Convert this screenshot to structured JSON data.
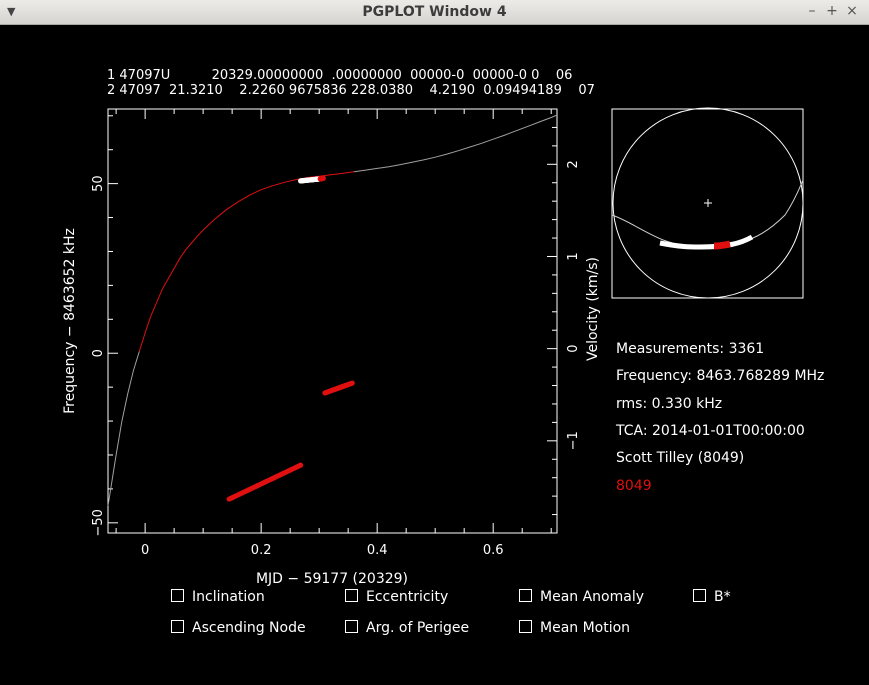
{
  "window": {
    "title": "PGPLOT Window 4",
    "menu_icon": "chevron-down-icon",
    "buttons": {
      "minimize": "–",
      "maximize": "+",
      "close": "×"
    }
  },
  "tle": {
    "line1": "1 47097U          20329.00000000  .00000000  00000-0  00000-0 0    06",
    "line2": "2 47097  21.3210    2.2260 9675836 228.0380    4.2190  0.09494189    07"
  },
  "chart_data": [
    {
      "type": "scatter",
      "xlabel": "MJD − 59177 (20329)",
      "ylabel": "Frequency − 8463652 kHz",
      "y2label": "Velocity (km/s)",
      "xlim": [
        -0.064,
        0.71
      ],
      "ylim": [
        -53,
        72
      ],
      "y2lim": [
        -2.0,
        2.6
      ],
      "x_ticks": [
        0,
        0.2,
        0.4,
        0.6
      ],
      "x_tick_labels": [
        "0",
        "0.2",
        "0.4",
        "0.6"
      ],
      "y_ticks": [
        -50,
        0,
        50
      ],
      "y_tick_labels": [
        "−50",
        "0",
        "50"
      ],
      "y2_ticks": [
        -1,
        0,
        1,
        2
      ],
      "y2_tick_labels": [
        "−1",
        "0",
        "1",
        "2"
      ],
      "model_curve": {
        "x": [
          -0.064,
          -0.05,
          -0.04,
          -0.03,
          -0.02,
          -0.01,
          0,
          0.01,
          0.02,
          0.03,
          0.04,
          0.05,
          0.06,
          0.07,
          0.08,
          0.09,
          0.1,
          0.12,
          0.14,
          0.16,
          0.18,
          0.2,
          0.22,
          0.24,
          0.26,
          0.28,
          0.3,
          0.32,
          0.34,
          0.36,
          0.38,
          0.4,
          0.42,
          0.44,
          0.46,
          0.48,
          0.5,
          0.52,
          0.54,
          0.56,
          0.58,
          0.6,
          0.62,
          0.64,
          0.66,
          0.68,
          0.7,
          0.71
        ],
        "y": [
          -45,
          -30,
          -20,
          -12,
          -5,
          0.5,
          6,
          11,
          15,
          19,
          22,
          25,
          28,
          30.5,
          32.5,
          34.5,
          36.3,
          39.5,
          42.3,
          44.6,
          46.6,
          48.2,
          49.4,
          50.4,
          51.2,
          51.8,
          52.2,
          52.6,
          53,
          53.5,
          54,
          54.5,
          55,
          55.6,
          56.3,
          57,
          57.8,
          58.7,
          59.7,
          60.8,
          61.9,
          63.1,
          64.3,
          65.6,
          66.9,
          68.2,
          69.5,
          70.2
        ],
        "observed_range": [
          -0.01,
          0.36
        ],
        "observed_color": "#e01010",
        "outside_color": "#a0a0a0"
      },
      "measurement_groups": [
        {
          "color": "#ffffff",
          "x_start": 0.268,
          "x_end": 0.302,
          "y_start": 50.8,
          "y_end": 51.4
        },
        {
          "color": "#e01010",
          "x_start": 0.302,
          "x_end": 0.307,
          "y_start": 51.4,
          "y_end": 51.6
        },
        {
          "color": "#e01010",
          "x_start": 0.31,
          "x_end": 0.357,
          "y_start": -11.7,
          "y_end": -8.8
        },
        {
          "color": "#e01010",
          "x_start": 0.145,
          "x_end": 0.268,
          "y_start": -43,
          "y_end": -33
        }
      ]
    },
    {
      "type": "scatter",
      "title": "",
      "description_polar": "ground track inset with circle and ellipse track",
      "track_color": "#ffffff",
      "highlight_color": "#e01010"
    }
  ],
  "info": {
    "measurements": "Measurements: 3361",
    "frequency": "Frequency: 8463.768289 MHz",
    "rms": "rms: 0.330 kHz",
    "tca": "TCA: 2014-01-01T00:00:00",
    "observer": "Scott Tilley (8049)",
    "site": "8049",
    "site_color": "#e01010"
  },
  "checkboxes": {
    "inclination": "Inclination",
    "eccentricity": "Eccentricity",
    "mean_anomaly": "Mean Anomaly",
    "bstar": "B*",
    "ascending_node": "Ascending Node",
    "arg_perigee": "Arg. of Perigee",
    "mean_motion": "Mean Motion"
  }
}
